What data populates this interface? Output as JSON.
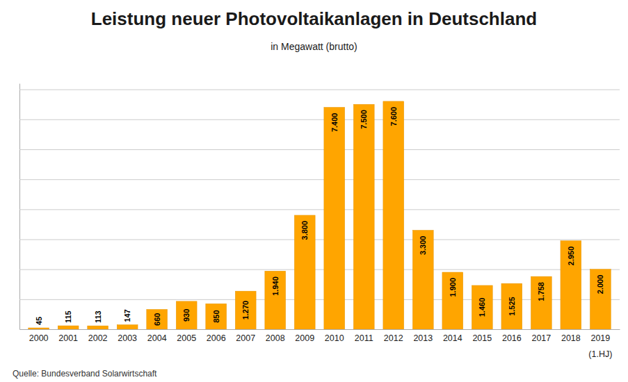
{
  "chart_data": {
    "type": "bar",
    "title": "Leistung neuer Photovoltaikanlagen in Deutschland",
    "subtitle": "in Megawatt (brutto)",
    "source": "Quelle: Bundesverband Solarwirtschaft",
    "annotations": [
      {
        "text": "(1.HJ)",
        "x": "2019"
      }
    ],
    "categories": [
      "2000",
      "2001",
      "2002",
      "2003",
      "2004",
      "2005",
      "2006",
      "2007",
      "2008",
      "2009",
      "2010",
      "2011",
      "2012",
      "2013",
      "2014",
      "2015",
      "2016",
      "2017",
      "2018",
      "2019"
    ],
    "values": [
      45,
      115,
      113,
      147,
      660,
      930,
      850,
      1270,
      1940,
      3800,
      7400,
      7500,
      7600,
      3300,
      1900,
      1460,
      1525,
      1758,
      2950,
      2000
    ],
    "value_labels": [
      "45",
      "115",
      "113",
      "147",
      "660",
      "930",
      "850",
      "1.270",
      "1.940",
      "3.800",
      "7.400",
      "7.500",
      "7.600",
      "3.300",
      "1.900",
      "1.460",
      "1.525",
      "1.758",
      "2.950",
      "2.000"
    ],
    "data_labels": true,
    "color": "#FFA500",
    "ylim": [
      0,
      8200
    ],
    "yticks": [
      0,
      1000,
      2000,
      3000,
      4000,
      5000,
      6000,
      7000,
      8000
    ],
    "grid": true,
    "tick_labels": "x"
  }
}
